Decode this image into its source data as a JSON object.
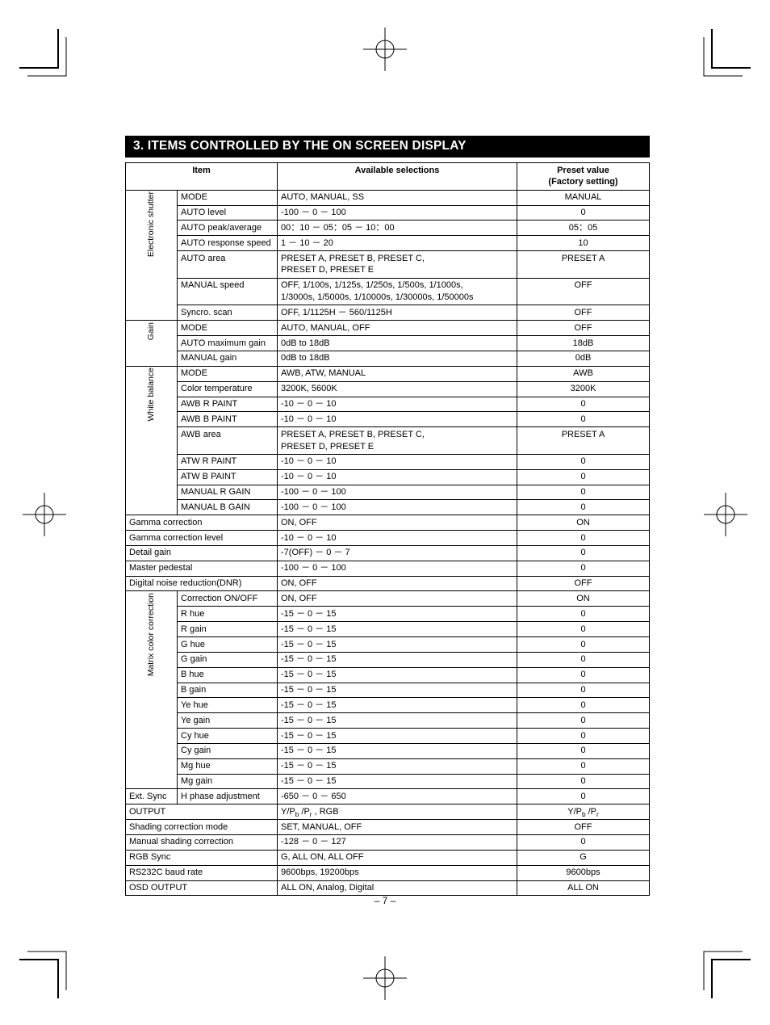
{
  "section_title": "3.  ITEMS CONTROLLED BY THE ON SCREEN DISPLAY",
  "page_number": "– 7 –",
  "headers": {
    "item": "Item",
    "available": "Available selections",
    "preset": "Preset value\n(Factory setting)"
  },
  "colors": {
    "title_bg": "#000000",
    "title_fg": "#ffffff",
    "border": "#000000",
    "page_bg": "#ffffff",
    "text": "#000000"
  },
  "groups": [
    {
      "label": "Electronic shutter",
      "rows": [
        {
          "item": "MODE",
          "avail": "AUTO, MANUAL, SS",
          "preset": "MANUAL"
        },
        {
          "item": "AUTO level",
          "avail": "-100 － 0 － 100",
          "preset": "0"
        },
        {
          "item": "AUTO peak/average",
          "avail": "00：10 － 05：05 － 10：00",
          "preset": "05：05"
        },
        {
          "item": "AUTO response speed",
          "avail": "1 － 10 － 20",
          "preset": "10"
        },
        {
          "item": "AUTO area",
          "avail": "PRESET A, PRESET B, PRESET C,\nPRESET D, PRESET E",
          "preset": "PRESET A"
        },
        {
          "item": "MANUAL speed",
          "avail": "OFF, 1/100s, 1/125s, 1/250s, 1/500s, 1/1000s,\n1/3000s, 1/5000s, 1/10000s, 1/30000s, 1/50000s",
          "preset": "OFF"
        },
        {
          "item": "Syncro. scan",
          "avail": "OFF, 1/1125H － 560/1125H",
          "preset": "OFF"
        }
      ]
    },
    {
      "label": "Gain",
      "rows": [
        {
          "item": "MODE",
          "avail": "AUTO, MANUAL, OFF",
          "preset": "OFF"
        },
        {
          "item": "AUTO maximum gain",
          "avail": "0dB to 18dB",
          "preset": "18dB"
        },
        {
          "item": "MANUAL gain",
          "avail": "0dB to 18dB",
          "preset": "0dB"
        }
      ]
    },
    {
      "label": "White balance",
      "rows": [
        {
          "item": "MODE",
          "avail": "AWB, ATW, MANUAL",
          "preset": "AWB"
        },
        {
          "item": "Color temperature",
          "avail": "3200K, 5600K",
          "preset": "3200K"
        },
        {
          "item": "AWB R PAINT",
          "avail": "-10 － 0 － 10",
          "preset": "0"
        },
        {
          "item": "AWB B PAINT",
          "avail": "-10 － 0 － 10",
          "preset": "0"
        },
        {
          "item": "AWB area",
          "avail": "PRESET A, PRESET B, PRESET C,\nPRESET D, PRESET E",
          "preset": "PRESET A"
        },
        {
          "item": "ATW R PAINT",
          "avail": "-10 － 0 － 10",
          "preset": "0"
        },
        {
          "item": "ATW B PAINT",
          "avail": "-10 － 0 － 10",
          "preset": "0"
        },
        {
          "item": "MANUAL R GAIN",
          "avail": "-100 － 0 － 100",
          "preset": "0"
        },
        {
          "item": "MANUAL B GAIN",
          "avail": "-100 － 0 － 100",
          "preset": "0"
        }
      ]
    }
  ],
  "single_rows_a": [
    {
      "item": "Gamma correction",
      "avail": "ON, OFF",
      "preset": "ON"
    },
    {
      "item": "Gamma correction level",
      "avail": "-10 － 0 － 10",
      "preset": "0"
    },
    {
      "item": "Detail gain",
      "avail": "-7(OFF) － 0 － 7",
      "preset": "0"
    },
    {
      "item": "Master pedestal",
      "avail": "-100 － 0 － 100",
      "preset": "0"
    },
    {
      "item": "Digital noise reduction(DNR)",
      "avail": "ON, OFF",
      "preset": "OFF"
    }
  ],
  "matrix_group": {
    "label": "Matrix color correction",
    "rows": [
      {
        "item": "Correction ON/OFF",
        "avail": "ON, OFF",
        "preset": "ON"
      },
      {
        "item": "R hue",
        "avail": "-15 － 0 － 15",
        "preset": "0"
      },
      {
        "item": "R gain",
        "avail": "-15 － 0 － 15",
        "preset": "0"
      },
      {
        "item": "G hue",
        "avail": "-15 － 0 － 15",
        "preset": "0"
      },
      {
        "item": "G gain",
        "avail": "-15 － 0 － 15",
        "preset": "0"
      },
      {
        "item": "B hue",
        "avail": "-15 － 0 － 15",
        "preset": "0"
      },
      {
        "item": "B gain",
        "avail": "-15 － 0 － 15",
        "preset": "0"
      },
      {
        "item": "Ye hue",
        "avail": "-15 － 0 － 15",
        "preset": "0"
      },
      {
        "item": "Ye gain",
        "avail": "-15 － 0 － 15",
        "preset": "0"
      },
      {
        "item": "Cy hue",
        "avail": "-15 － 0 － 15",
        "preset": "0"
      },
      {
        "item": "Cy gain",
        "avail": "-15 － 0 － 15",
        "preset": "0"
      },
      {
        "item": "Mg hue",
        "avail": "-15 － 0 － 15",
        "preset": "0"
      },
      {
        "item": "Mg gain",
        "avail": "-15 － 0 － 15",
        "preset": "0"
      }
    ]
  },
  "ext_sync": {
    "group": "Ext. Sync",
    "item": "H phase adjustment",
    "avail": "-650 － 0 － 650",
    "preset": "0"
  },
  "single_rows_b": [
    {
      "item": "OUTPUT",
      "avail": "Y/P_b /P_r , RGB",
      "preset": "Y/P_b /P_r",
      "has_sub": true
    },
    {
      "item": "Shading correction mode",
      "avail": "SET, MANUAL, OFF",
      "preset": "OFF"
    },
    {
      "item": "Manual shading correction",
      "avail": "-128 － 0 － 127",
      "preset": "0"
    },
    {
      "item": "RGB Sync",
      "avail": "G, ALL ON, ALL OFF",
      "preset": "G"
    },
    {
      "item": "RS232C baud rate",
      "avail": "9600bps, 19200bps",
      "preset": "9600bps"
    },
    {
      "item": "OSD OUTPUT",
      "avail": "ALL ON, Analog, Digital",
      "preset": "ALL ON"
    }
  ]
}
